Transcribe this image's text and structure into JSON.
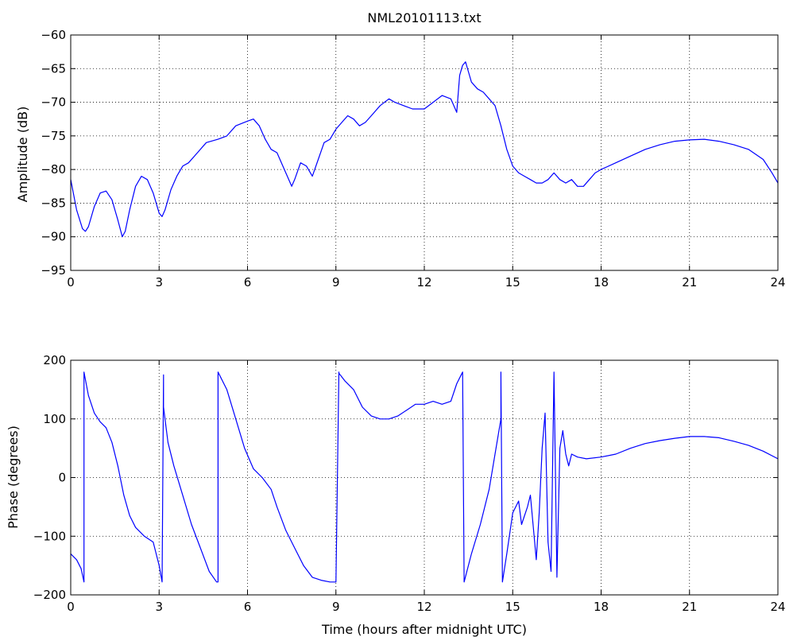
{
  "chart_data": [
    {
      "type": "line",
      "title": "NML20101113.txt",
      "xlabel": "",
      "ylabel": "Amplitude (dB)",
      "xlim": [
        0,
        24
      ],
      "ylim": [
        -95,
        -60
      ],
      "xticks": [
        "0",
        "3",
        "6",
        "9",
        "12",
        "15",
        "18",
        "21",
        "24"
      ],
      "yticks": [
        "-60",
        "-65",
        "-70",
        "-75",
        "-80",
        "-85",
        "-90",
        "-95"
      ],
      "grid": true,
      "line_color": "#0000ff",
      "series": [
        {
          "x": [
            0,
            0.2,
            0.4,
            0.5,
            0.6,
            0.8,
            1.0,
            1.2,
            1.4,
            1.6,
            1.75,
            1.85,
            2.0,
            2.2,
            2.4,
            2.6,
            2.8,
            3.0,
            3.1,
            3.2,
            3.4,
            3.6,
            3.8,
            4.0,
            4.3,
            4.6,
            5.0,
            5.3,
            5.6,
            6.0,
            6.2,
            6.4,
            6.6,
            6.8,
            7.0,
            7.2,
            7.4,
            7.5,
            7.6,
            7.8,
            8.0,
            8.2,
            8.4,
            8.6,
            8.8,
            9.0,
            9.2,
            9.4,
            9.6,
            9.8,
            10.0,
            10.2,
            10.5,
            10.8,
            11.0,
            11.3,
            11.6,
            12.0,
            12.3,
            12.6,
            12.9,
            13.0,
            13.1,
            13.2,
            13.3,
            13.4,
            13.5,
            13.6,
            13.8,
            14.0,
            14.2,
            14.4,
            14.6,
            14.8,
            15.0,
            15.2,
            15.4,
            15.6,
            15.8,
            16.0,
            16.2,
            16.4,
            16.6,
            16.8,
            17.0,
            17.2,
            17.4,
            17.6,
            17.8,
            18.0,
            18.5,
            19.0,
            19.5,
            20.0,
            20.5,
            21.0,
            21.5,
            22.0,
            22.5,
            23.0,
            23.5,
            23.8,
            24.0
          ],
          "y": [
            -81.5,
            -86,
            -88.8,
            -89.2,
            -88.5,
            -85.5,
            -83.5,
            -83.2,
            -84.5,
            -87.5,
            -90,
            -89.2,
            -86,
            -82.5,
            -81,
            -81.5,
            -83.5,
            -86.5,
            -87,
            -86,
            -83,
            -81,
            -79.5,
            -79,
            -77.5,
            -76,
            -75.5,
            -75,
            -73.5,
            -72.8,
            -72.5,
            -73.5,
            -75.5,
            -77,
            -77.5,
            -79.5,
            -81.5,
            -82.5,
            -81.5,
            -79,
            -79.5,
            -81,
            -78.5,
            -76,
            -75.5,
            -74,
            -73,
            -72,
            -72.5,
            -73.5,
            -73,
            -72,
            -70.5,
            -69.5,
            -70,
            -70.5,
            -71,
            -71,
            -70,
            -69,
            -69.5,
            -70.5,
            -71.5,
            -66,
            -64.5,
            -64,
            -65.5,
            -67,
            -68,
            -68.5,
            -69.5,
            -70.5,
            -73.5,
            -77,
            -79.5,
            -80.5,
            -81,
            -81.5,
            -82,
            -82,
            -81.5,
            -80.5,
            -81.5,
            -82,
            -81.5,
            -82.5,
            -82.5,
            -81.5,
            -80.5,
            -80,
            -79,
            -78,
            -77,
            -76.3,
            -75.8,
            -75.6,
            -75.5,
            -75.8,
            -76.3,
            -77,
            -78.5,
            -80.5,
            -82
          ]
        }
      ]
    },
    {
      "type": "line",
      "title": "",
      "xlabel": "Time (hours after midnight UTC)",
      "ylabel": "Phase (degrees)",
      "xlim": [
        0,
        24
      ],
      "ylim": [
        -200,
        200
      ],
      "xticks": [
        "0",
        "3",
        "6",
        "9",
        "12",
        "15",
        "18",
        "21",
        "24"
      ],
      "yticks": [
        "200",
        "100",
        "0",
        "-100",
        "-200"
      ],
      "grid": true,
      "line_color": "#0000ff",
      "series": [
        {
          "x": [
            0,
            0.2,
            0.35,
            0.45,
            0.45,
            0.6,
            0.8,
            1.0,
            1.2,
            1.4,
            1.6,
            1.8,
            2.0,
            2.2,
            2.5,
            2.8,
            3.0,
            3.1,
            3.15,
            3.15,
            3.3,
            3.5,
            3.8,
            4.1,
            4.4,
            4.7,
            4.95,
            5.0,
            5.0,
            5.3,
            5.6,
            5.9,
            6.2,
            6.5,
            6.8,
            7.0,
            7.3,
            7.6,
            7.9,
            8.2,
            8.5,
            8.8,
            9.0,
            9.1,
            9.1,
            9.3,
            9.6,
            9.9,
            10.2,
            10.5,
            10.8,
            11.1,
            11.4,
            11.7,
            12.0,
            12.3,
            12.6,
            12.9,
            13.1,
            13.3,
            13.35,
            13.35,
            13.6,
            13.9,
            14.2,
            14.4,
            14.6,
            14.6,
            14.65,
            14.8,
            15.0,
            15.2,
            15.3,
            15.5,
            15.6,
            15.8,
            15.9,
            16.0,
            16.1,
            16.2,
            16.3,
            16.4,
            16.5,
            16.6,
            16.7,
            16.8,
            16.9,
            17.0,
            17.2,
            17.5,
            18.0,
            18.5,
            19.0,
            19.5,
            20.0,
            20.5,
            21.0,
            21.5,
            22.0,
            22.5,
            23.0,
            23.5,
            24.0
          ],
          "y": [
            -130,
            -140,
            -155,
            -178,
            180,
            140,
            110,
            95,
            85,
            60,
            20,
            -30,
            -65,
            -85,
            -100,
            -110,
            -150,
            -178,
            175,
            120,
            60,
            20,
            -30,
            -80,
            -120,
            -160,
            -178,
            -178,
            180,
            150,
            100,
            50,
            15,
            0,
            -20,
            -50,
            -90,
            -120,
            -150,
            -170,
            -175,
            -178,
            -178,
            180,
            178,
            165,
            150,
            120,
            105,
            100,
            100,
            105,
            115,
            125,
            125,
            130,
            125,
            130,
            160,
            180,
            -178,
            -178,
            -130,
            -80,
            -20,
            40,
            100,
            180,
            -178,
            -130,
            -60,
            -40,
            -80,
            -50,
            -30,
            -140,
            -60,
            50,
            110,
            -110,
            -160,
            180,
            -170,
            50,
            80,
            40,
            20,
            40,
            35,
            32,
            35,
            40,
            50,
            58,
            63,
            67,
            70,
            70,
            68,
            62,
            55,
            45,
            32
          ]
        }
      ]
    }
  ]
}
